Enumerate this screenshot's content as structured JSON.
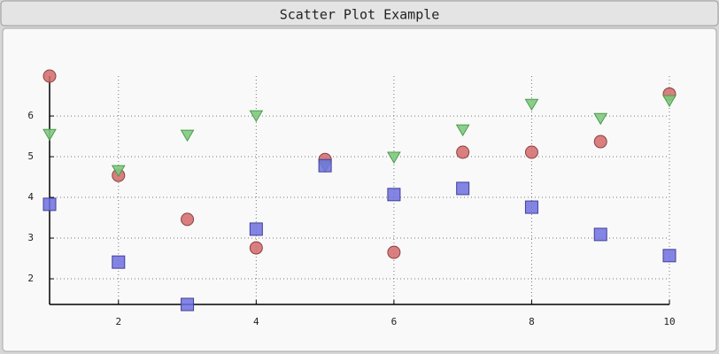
{
  "chart_data": {
    "type": "scatter",
    "title": "Scatter Plot Example",
    "x": [
      1,
      2,
      3,
      4,
      5,
      6,
      7,
      8,
      9,
      10
    ],
    "series": [
      {
        "marker": "circle",
        "color": "#d46a6a",
        "values": [
          6.98,
          4.54,
          3.46,
          2.76,
          4.93,
          2.65,
          5.11,
          5.11,
          5.37,
          6.54
        ]
      },
      {
        "marker": "triangle-down",
        "color": "#7fc97f",
        "values": [
          5.54,
          4.65,
          5.52,
          6.0,
          4.76,
          4.98,
          5.65,
          6.28,
          5.93,
          6.37
        ]
      },
      {
        "marker": "square",
        "color": "#7070e0",
        "values": [
          3.83,
          2.41,
          1.37,
          3.22,
          4.78,
          4.07,
          4.22,
          3.76,
          3.09,
          2.57
        ]
      }
    ],
    "xlim": [
      1,
      10
    ],
    "ylim": [
      1.37,
      6.98
    ],
    "xticks": [
      2,
      4,
      6,
      8,
      10
    ],
    "yticks": [
      2,
      3,
      4,
      5,
      6
    ],
    "grid": true
  }
}
